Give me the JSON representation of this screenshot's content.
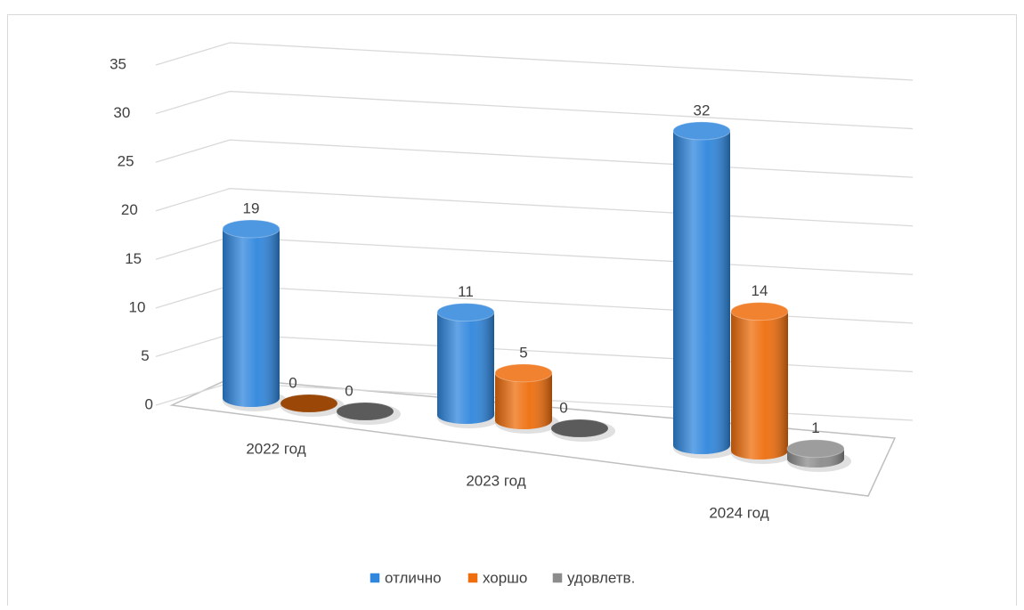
{
  "chart_data": {
    "type": "bar3d",
    "categories": [
      "2022 год",
      "2023 год",
      "2024 год"
    ],
    "series": [
      {
        "name": "отлично",
        "color": "#2f86dd",
        "values": [
          19,
          11,
          32
        ]
      },
      {
        "name": "хоршо",
        "color": "#ee6d0c",
        "values": [
          0,
          5,
          14
        ]
      },
      {
        "name": "удовлетв.",
        "color": "#8c8c8c",
        "values": [
          0,
          0,
          1
        ]
      }
    ],
    "ylim": [
      0,
      35
    ],
    "yticks": [
      0,
      5,
      10,
      15,
      20,
      25,
      30,
      35
    ],
    "grid": true,
    "legend": "bottom"
  }
}
